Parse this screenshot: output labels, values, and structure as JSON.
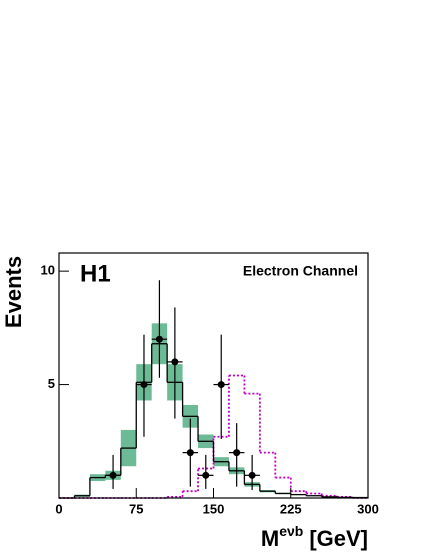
{
  "chart_data": {
    "type": "histogram",
    "title": "H1",
    "annotation": "Electron Channel",
    "y_label": "Events",
    "x_label": {
      "base": "M",
      "sup": "eνb",
      "unit": "[GeV]"
    },
    "bins": [
      0,
      15,
      30,
      45,
      60,
      75,
      90,
      105,
      120,
      135,
      150,
      165,
      180,
      195,
      210,
      225,
      240,
      255,
      270,
      285,
      300
    ],
    "mc": {
      "color": "#000000",
      "band_color": "#6dba96",
      "values": [
        0,
        0.1,
        0.9,
        1.0,
        2.2,
        5.1,
        6.8,
        5.1,
        3.6,
        2.5,
        1.6,
        1.2,
        0.6,
        0.3,
        0.2,
        0.15,
        0.1,
        0.05,
        0.03,
        0.02
      ],
      "errors": [
        0,
        0.05,
        0.15,
        0.2,
        0.8,
        0.8,
        0.9,
        0.8,
        0.5,
        0.3,
        0.2,
        0.15,
        0.1,
        0.05,
        0.03,
        0.02,
        0.01,
        0.01,
        0.01,
        0.01
      ]
    },
    "signal": {
      "color": "#c000c0",
      "values": [
        0,
        0,
        0,
        0,
        0,
        0,
        0,
        0.05,
        0.3,
        1.3,
        2.7,
        5.4,
        4.6,
        2.0,
        0.9,
        0.3,
        0.2,
        0.1,
        0.05,
        0
      ]
    },
    "data": {
      "color": "#000000",
      "x": [
        52.5,
        82.5,
        97.5,
        112.5,
        127.5,
        142.5,
        157.5,
        172.5,
        187.5
      ],
      "values": [
        1,
        5,
        7,
        6,
        2,
        1,
        5,
        2,
        1
      ],
      "err_low": [
        0.6,
        2.3,
        1.7,
        2.5,
        1.5,
        0.6,
        2.4,
        1.5,
        0.65
      ],
      "err_high": [
        0.9,
        2.2,
        2.6,
        2.4,
        1.5,
        0.9,
        2.2,
        1.3,
        0.9
      ]
    },
    "xlim": [
      0,
      300
    ],
    "ylim": [
      0,
      10.8
    ],
    "xticks": [
      0,
      75,
      150,
      225,
      300
    ],
    "yticks": [
      5,
      10
    ]
  }
}
